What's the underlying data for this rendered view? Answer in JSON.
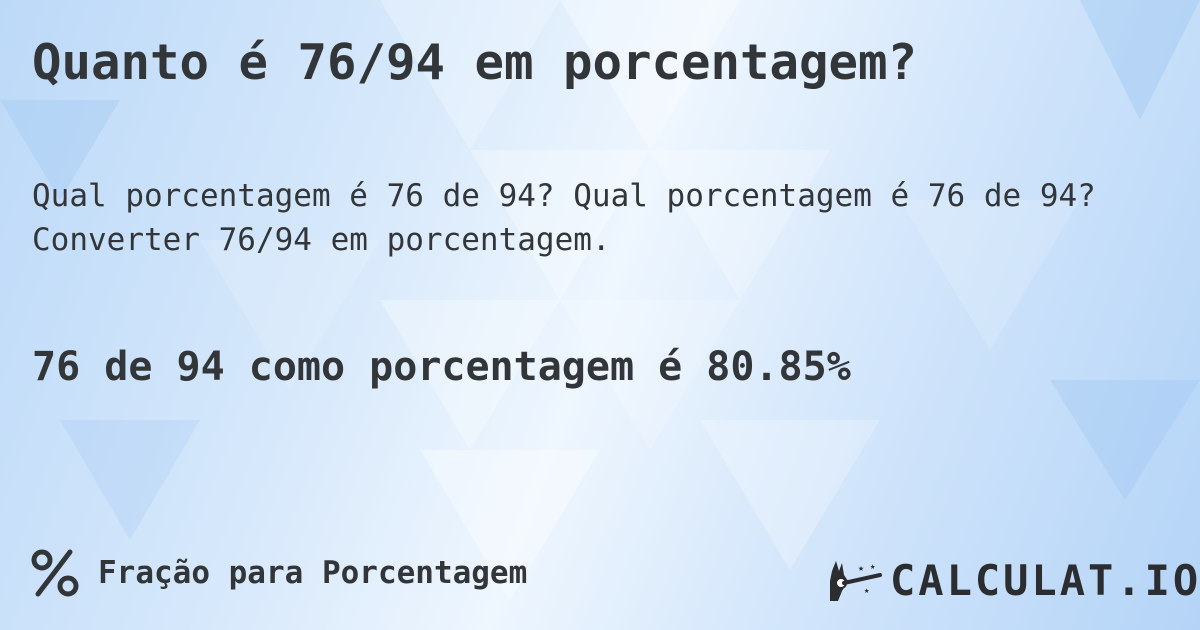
{
  "header": {
    "title": "Quanto é 76/94 em porcentagem?"
  },
  "description": {
    "line1": "Qual porcentagem é 76 de 94? Qual porcentagem é 76 de 94?",
    "line2": "Converter 76/94 em porcentagem."
  },
  "result": {
    "text": "76 de 94 como porcentagem é 80.85%"
  },
  "footer": {
    "category_icon": "percent-icon",
    "category_label": "Fração para Porcentagem"
  },
  "logo": {
    "text": "CALCULAT.IO",
    "icon": "magic-hand-icon"
  },
  "colors": {
    "text": "#333639",
    "background": "#d6e8fb"
  }
}
